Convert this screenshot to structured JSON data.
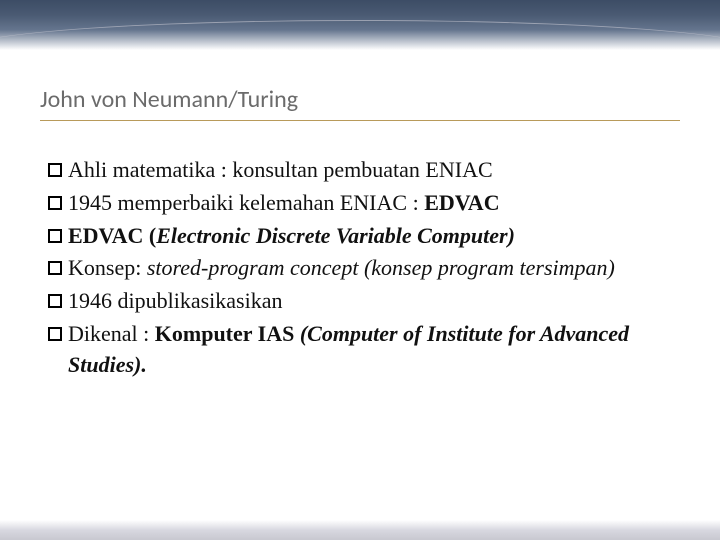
{
  "colors": {
    "page_bg": "#ffffff",
    "title_color": "#6b6b6b",
    "title_underline": "#b89a5a",
    "body_text": "#111111",
    "bullet_border": "#000000",
    "top_gradient_dark": "#1a2d4a",
    "top_gradient_light": "#ffffff",
    "bottom_gradient": "#c8c8d0"
  },
  "typography": {
    "title_font": "Calibri",
    "title_size_pt": 24,
    "body_font": "Georgia",
    "body_size_pt": 22,
    "line_height": 1.4
  },
  "title": "John von Neumann/Turing",
  "bullets": [
    {
      "segments": [
        {
          "text": "Ahli matematika : konsultan pembuatan ENIAC"
        }
      ]
    },
    {
      "segments": [
        {
          "text": "1945 memperbaiki kelemahan ENIAC : "
        },
        {
          "text": "EDVAC",
          "bold": true
        }
      ]
    },
    {
      "segments": [
        {
          "text": "EDVAC (",
          "bold": true
        },
        {
          "text": "Electronic Discrete Variable Computer)",
          "bold": true,
          "italic": true
        }
      ]
    },
    {
      "segments": [
        {
          "text": "Konsep: "
        },
        {
          "text": "stored-program concept (konsep program tersimpan)",
          "italic": true
        }
      ],
      "hang": true
    },
    {
      "segments": [
        {
          "text": "1946 dipublikasikasikan"
        }
      ]
    },
    {
      "segments": [
        {
          "text": "Dikenal : "
        },
        {
          "text": "Komputer IAS ",
          "bold": true
        },
        {
          "text": "(Computer of Institute for Advanced Studies).",
          "bold": true,
          "italic": true
        }
      ],
      "hang": true
    }
  ]
}
